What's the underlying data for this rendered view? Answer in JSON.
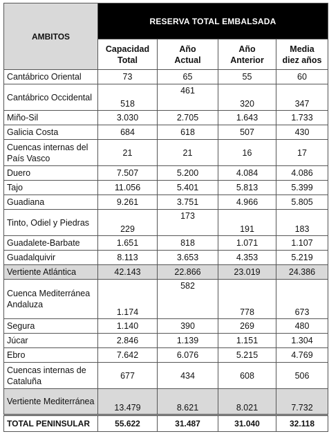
{
  "header": {
    "ambitos": "AMBITOS",
    "reserva_total": "RESERVA TOTAL EMBALSADA",
    "columns": [
      {
        "line1": "Capacidad",
        "line2": "Total"
      },
      {
        "line1": "Año",
        "line2": "Actual"
      },
      {
        "line1": "Año",
        "line2": "Anterior"
      },
      {
        "line1": "Media",
        "line2": "diez años"
      }
    ]
  },
  "rows": [
    {
      "name": "Cantábrico Oriental",
      "capacidad": "73",
      "actual": "65",
      "anterior": "55",
      "media": "60"
    },
    {
      "name": "Cantábrico Occidental",
      "capacidad": "518",
      "actual": "461",
      "anterior": "320",
      "media": "347"
    },
    {
      "name": "Miño-Sil",
      "capacidad": "3.030",
      "actual": "2.705",
      "anterior": "1.643",
      "media": "1.733"
    },
    {
      "name": "Galicia Costa",
      "capacidad": "684",
      "actual": "618",
      "anterior": "507",
      "media": "430"
    },
    {
      "name": "Cuencas internas del País Vasco",
      "capacidad": "21",
      "actual": "21",
      "anterior": "16",
      "media": "17"
    },
    {
      "name": "Duero",
      "capacidad": "7.507",
      "actual": "5.200",
      "anterior": "4.084",
      "media": "4.086"
    },
    {
      "name": "Tajo",
      "capacidad": "11.056",
      "actual": "5.401",
      "anterior": "5.813",
      "media": "5.399"
    },
    {
      "name": "Guadiana",
      "capacidad": "9.261",
      "actual": "3.751",
      "anterior": "4.966",
      "media": "5.805"
    },
    {
      "name": "Tinto, Odiel y Piedras",
      "capacidad": "229",
      "actual": "173",
      "anterior": "191",
      "media": "183"
    },
    {
      "name": "Guadalete-Barbate",
      "capacidad": "1.651",
      "actual": "818",
      "anterior": "1.071",
      "media": "1.107"
    },
    {
      "name": "Guadalquivir",
      "capacidad": "8.113",
      "actual": "3.653",
      "anterior": "4.353",
      "media": "5.219"
    },
    {
      "name": "Vertiente Atlántica",
      "capacidad": "42.143",
      "actual": "22.866",
      "anterior": "23.019",
      "media": "24.386"
    },
    {
      "name": "Cuenca Mediterránea Andaluza",
      "capacidad": "1.174",
      "actual": "582",
      "anterior": "778",
      "media": "673"
    },
    {
      "name": "Segura",
      "capacidad": "1.140",
      "actual": "390",
      "anterior": "269",
      "media": "480"
    },
    {
      "name": "Júcar",
      "capacidad": "2.846",
      "actual": "1.139",
      "anterior": "1.151",
      "media": "1.304"
    },
    {
      "name": "Ebro",
      "capacidad": "7.642",
      "actual": "6.076",
      "anterior": "5.215",
      "media": "4.769"
    },
    {
      "name": "Cuencas internas de Cataluña",
      "capacidad": "677",
      "actual": "434",
      "anterior": "608",
      "media": "506"
    },
    {
      "name": "Vertiente Mediterránea",
      "capacidad": "13.479",
      "actual": "8.621",
      "anterior": "8.021",
      "media": "7.732"
    }
  ],
  "total": {
    "name": "TOTAL PENINSULAR",
    "capacidad": "55.622",
    "actual": "31.487",
    "anterior": "31.040",
    "media": "32.118"
  }
}
